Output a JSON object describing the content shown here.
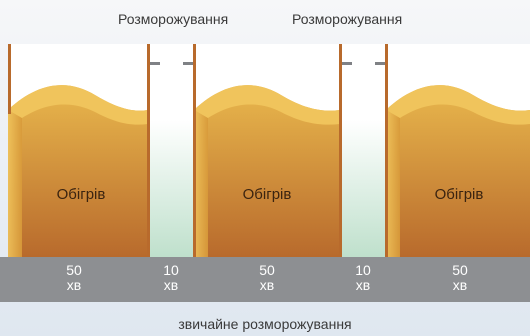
{
  "defrost_labels": [
    "Розморожування",
    "Розморожування"
  ],
  "heating_label": "Обігрів",
  "time_cells": [
    {
      "value": "50",
      "unit": "хв"
    },
    {
      "value": "10",
      "unit": "хв"
    },
    {
      "value": "50",
      "unit": "хв"
    },
    {
      "value": "10",
      "unit": "хв"
    },
    {
      "value": "50",
      "unit": "хв"
    }
  ],
  "caption": "звичайне розморожування",
  "colors": {
    "heat_top": "#e9b84d",
    "heat_bottom": "#b86a2c",
    "defrost_top": "#ffffff",
    "defrost_bottom": "#bfe0cc",
    "time_bar": "#8d8f92"
  }
}
